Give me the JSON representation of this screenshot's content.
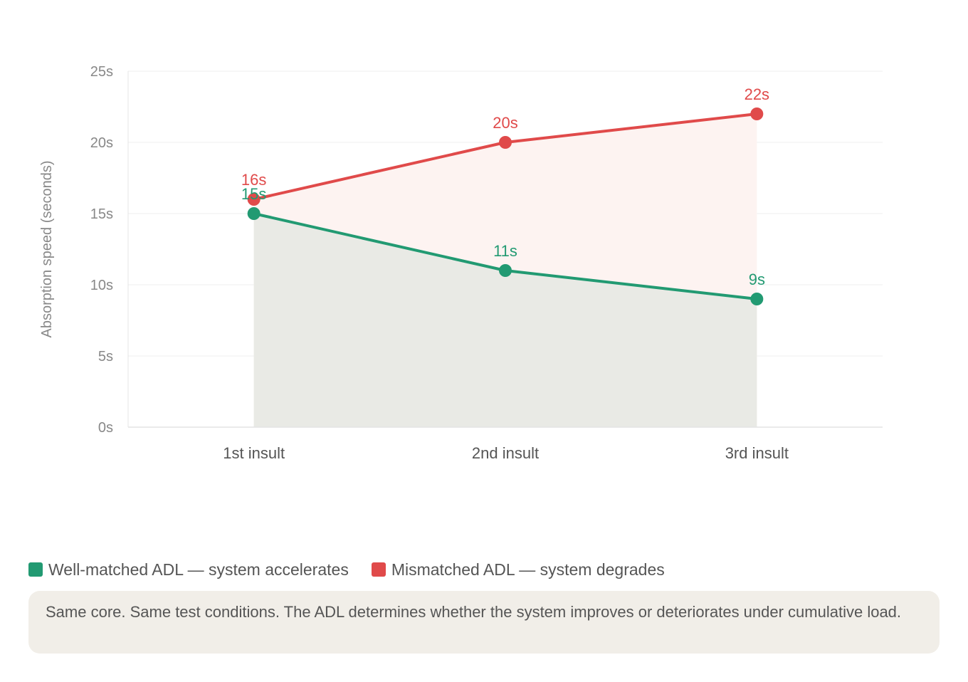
{
  "chart_data": {
    "type": "line",
    "title": "",
    "xlabel": "",
    "ylabel": "Absorption speed (seconds)",
    "categories": [
      "1st insult",
      "2nd insult",
      "3rd insult"
    ],
    "ylim": [
      0,
      25
    ],
    "y_ticks": [
      0,
      5,
      10,
      15,
      20,
      25
    ],
    "y_tick_labels": [
      "0s",
      "5s",
      "10s",
      "15s",
      "20s",
      "25s"
    ],
    "grid": true,
    "area_fill": true,
    "series": [
      {
        "name": "Well-matched ADL — system accelerates",
        "values": [
          15,
          11,
          9
        ],
        "data_labels": [
          "15s",
          "11s",
          "9s"
        ],
        "color": "#229a72",
        "fill": "#e9eae5"
      },
      {
        "name": "Mismatched ADL — system degrades",
        "values": [
          16,
          20,
          22
        ],
        "data_labels": [
          "16s",
          "20s",
          "22s"
        ],
        "color": "#e04a4a",
        "fill": "#fdf3f1"
      }
    ],
    "legend_placement": "bottom-left"
  },
  "legend": {
    "items": [
      {
        "label": "Well-matched ADL — system accelerates",
        "color": "#229a72"
      },
      {
        "label": "Mismatched ADL — system degrades",
        "color": "#e04a4a"
      }
    ]
  },
  "note": {
    "text": "Same core. Same test conditions. The ADL determines whether the system improves or deteriorates under cumulative load."
  }
}
